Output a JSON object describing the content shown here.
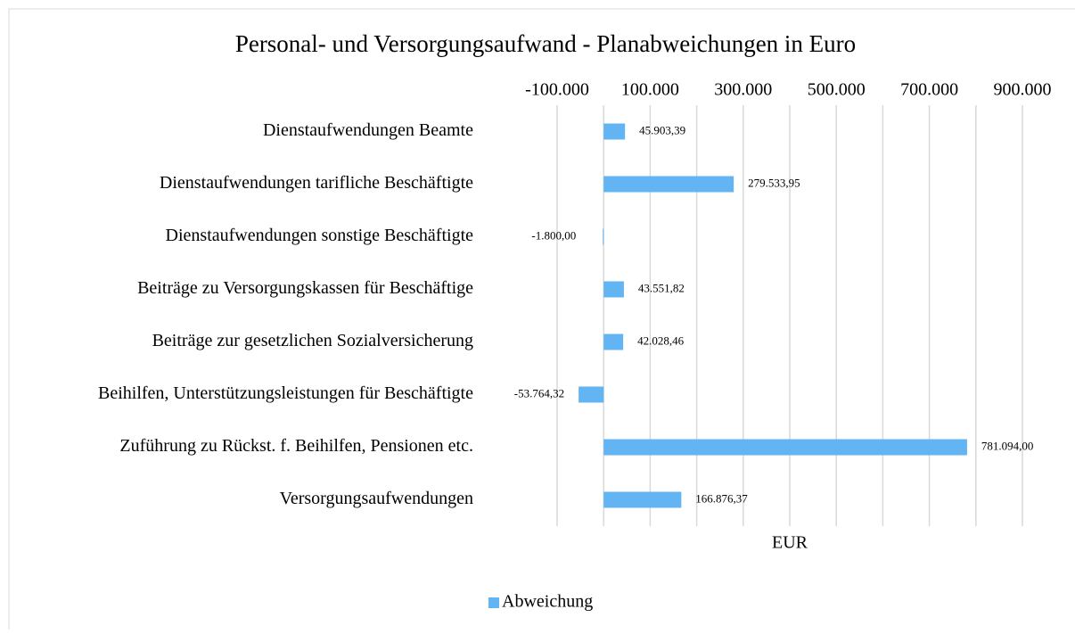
{
  "chart_data": {
    "type": "hbar",
    "title": "Personal- und Versorgungsaufwand - Planabweichungen in Euro",
    "xlabel": "EUR",
    "categories": [
      "Dienstaufwendungen Beamte",
      "Dienstaufwendungen tarifliche Beschäftigte",
      "Dienstaufwendungen sonstige Beschäftigte",
      "Beiträge zu Versorgungskassen für Beschäftige",
      "Beiträge zur gesetzlichen Sozialversicherung",
      "Beihilfen, Unterstützungsleistungen für Beschäftigte",
      "Zuführung zu Rückst. f. Beihilfen, Pensionen etc.",
      "Versorgungsaufwendungen"
    ],
    "series": [
      {
        "name": "Abweichung",
        "color": "#63b4f3",
        "values": [
          45903.39,
          279533.95,
          -1800.0,
          43551.82,
          42028.46,
          -53764.32,
          781094.0,
          166876.37
        ],
        "value_labels": [
          "45.903,39",
          "279.533,95",
          "-1.800,00",
          "43.551,82",
          "42.028,46",
          "-53.764,32",
          "781.094,00",
          "166.876,37"
        ]
      }
    ],
    "xlim": [
      -100000,
      900000
    ],
    "xticks": [
      {
        "value": -100000,
        "label": "-100.000"
      },
      {
        "value": 100000,
        "label": "100.000"
      },
      {
        "value": 300000,
        "label": "300.000"
      },
      {
        "value": 500000,
        "label": "500.000"
      },
      {
        "value": 700000,
        "label": "700.000"
      },
      {
        "value": 900000,
        "label": "900.000"
      }
    ],
    "xminor_ticks": [
      0,
      200000,
      400000,
      600000,
      800000
    ],
    "grid": true,
    "legend": "bottom"
  }
}
